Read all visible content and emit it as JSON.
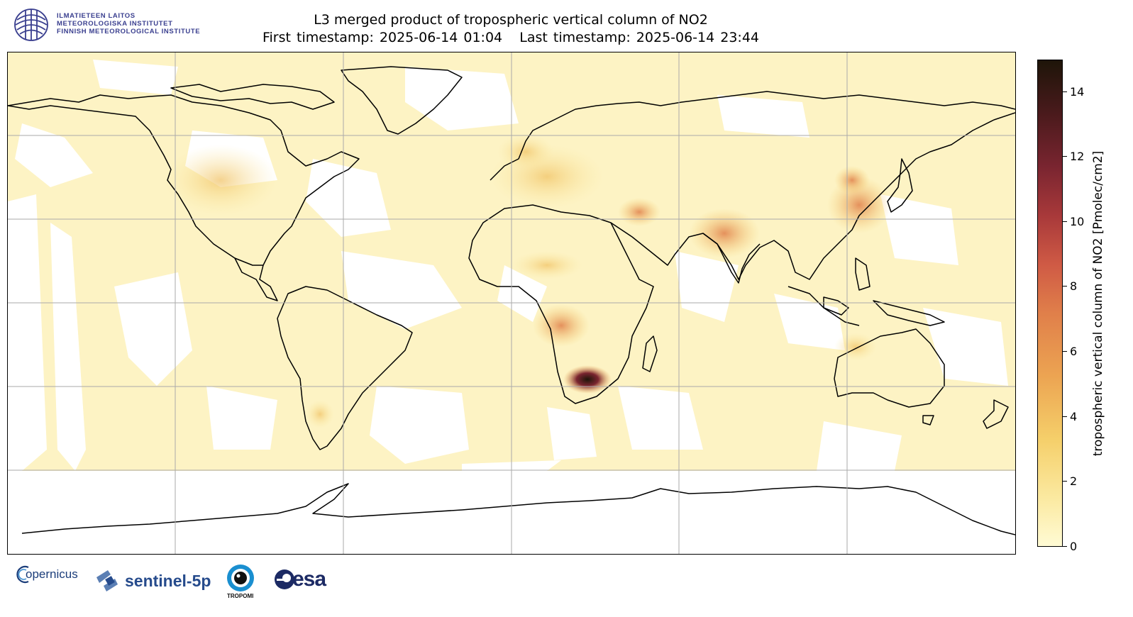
{
  "header": {
    "institute_lines": [
      "ILMATIETEEN LAITOS",
      "METEOROLOGISKA INSTITUTET",
      "FINNISH METEOROLOGICAL INSTITUTE"
    ],
    "title_line1": "L3 merged product of tropospheric vertical column of NO2",
    "title_line2": "First timestamp: 2025-06-14 01:04   Last timestamp: 2025-06-14 23:44"
  },
  "map": {
    "projection": "plate-carree",
    "gridlines": true,
    "land_outline_color": "#000000",
    "low_value_color": "#fffbd4",
    "hotspot_regions": [
      "South Africa (Highveld)",
      "Central Africa",
      "Northern India",
      "Eastern China",
      "Persian Gulf",
      "Western Europe"
    ]
  },
  "colorbar": {
    "label": "tropospheric vertical column of NO2 [Pmolec/cm2]",
    "range": [
      0,
      15
    ],
    "ticks": [
      "0",
      "2",
      "4",
      "6",
      "8",
      "10",
      "12",
      "14"
    ]
  },
  "logos": {
    "copernicus": "opernicus",
    "sentinel": "sentinel-5p",
    "tropomi": "TROPOMI",
    "esa": "esa"
  },
  "icons": [
    "fmi-emblem-icon",
    "copernicus-icon",
    "sentinel-satellite-icon",
    "tropomi-eye-icon",
    "esa-icon"
  ]
}
